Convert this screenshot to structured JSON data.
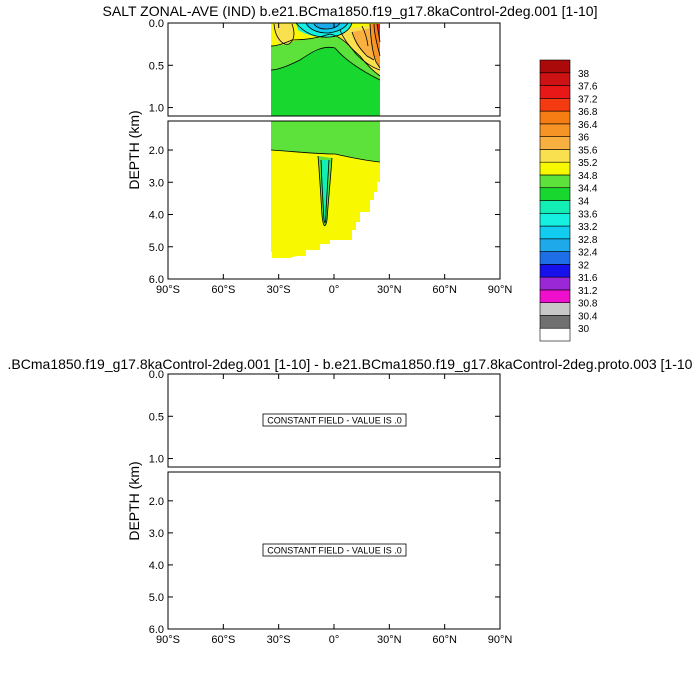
{
  "panels": [
    {
      "title": "SALT ZONAL-AVE (IND) b.e21.BCma1850.f19_g17.8kaControl-2deg.001 [1-10]",
      "ylabel": "DEPTH (km)"
    },
    {
      "title": ".BCma1850.f19_g17.8kaControl-2deg.001 [1-10] - b.e21.BCma1850.f19_g17.8kaControl-2deg.proto.003 [1-10",
      "ylabel": "DEPTH (km)",
      "constant_field_text": "CONSTANT FIELD - VALUE IS .0"
    }
  ],
  "colors": {
    "frame": "#000000",
    "contour": "#000000"
  },
  "chart_data": [
    {
      "type": "heatmap",
      "title": "SALT ZONAL-AVE (IND) b.e21.BCma1850.f19_g17.8kaControl-2deg.001 [1-10]",
      "xlabel": "",
      "ylabel": "DEPTH (km)",
      "xlim": [
        -90,
        90
      ],
      "ylim_upper": [
        0,
        1.1
      ],
      "ylim_lower": [
        1.1,
        6.0
      ],
      "x_ticks": [
        "90°S",
        "60°S",
        "30°S",
        "0°",
        "30°N",
        "60°N",
        "90°N"
      ],
      "y_ticks_upper": [
        "0.0",
        "0.5",
        "1.0"
      ],
      "y_ticks_lower": [
        "2.0",
        "3.0",
        "4.0",
        "5.0",
        "6.0"
      ],
      "grid": false,
      "legend": "colorbar-right",
      "colorbar": {
        "labels": [
          "30",
          "30.4",
          "30.8",
          "31.2",
          "31.6",
          "32",
          "32.4",
          "32.8",
          "33.2",
          "33.6",
          "34",
          "34.4",
          "34.8",
          "35.2",
          "35.6",
          "36",
          "36.4",
          "36.8",
          "37.2",
          "37.6",
          "38"
        ],
        "colors": [
          "#ffffff",
          "#707070",
          "#c8c8c8",
          "#ee10cc",
          "#9a28d6",
          "#1610ea",
          "#1e6ee8",
          "#1eaaea",
          "#12cdf0",
          "#16f0e0",
          "#12eeb4",
          "#18d830",
          "#5ce23a",
          "#f8f800",
          "#f8e04e",
          "#f8b040",
          "#f69426",
          "#f67c14",
          "#f43a10",
          "#e81818",
          "#cc1212",
          "#aa0a0a"
        ]
      },
      "regions": [
        {
          "salinity_range": [
            34.4,
            34.8
          ],
          "lat_range": [
            -33,
            24
          ],
          "depth_km": [
            0.05,
            1.1
          ]
        },
        {
          "salinity_range": [
            34.8,
            35.2
          ],
          "lat_range": [
            -33,
            24
          ],
          "depth_km": [
            1.7,
            5.3
          ]
        },
        {
          "salinity_range": [
            35.2,
            38.0
          ],
          "lat_range": [
            -33,
            24
          ],
          "depth_km": [
            0.0,
            0.6
          ]
        }
      ]
    },
    {
      "type": "heatmap",
      "title": ".BCma1850.f19_g17.8kaControl-2deg.001 [1-10] - b.e21.BCma1850.f19_g17.8kaControl-2deg.proto.003 [1-10",
      "xlabel": "",
      "ylabel": "DEPTH (km)",
      "xlim": [
        -90,
        90
      ],
      "ylim_upper": [
        0,
        1.1
      ],
      "ylim_lower": [
        1.1,
        6.0
      ],
      "x_ticks": [
        "90°S",
        "60°S",
        "30°S",
        "0°",
        "30°N",
        "60°N",
        "90°N"
      ],
      "y_ticks_upper": [
        "0.0",
        "0.5",
        "1.0"
      ],
      "y_ticks_lower": [
        "2.0",
        "3.0",
        "4.0",
        "5.0",
        "6.0"
      ],
      "grid": false,
      "constant_value": 0
    }
  ]
}
